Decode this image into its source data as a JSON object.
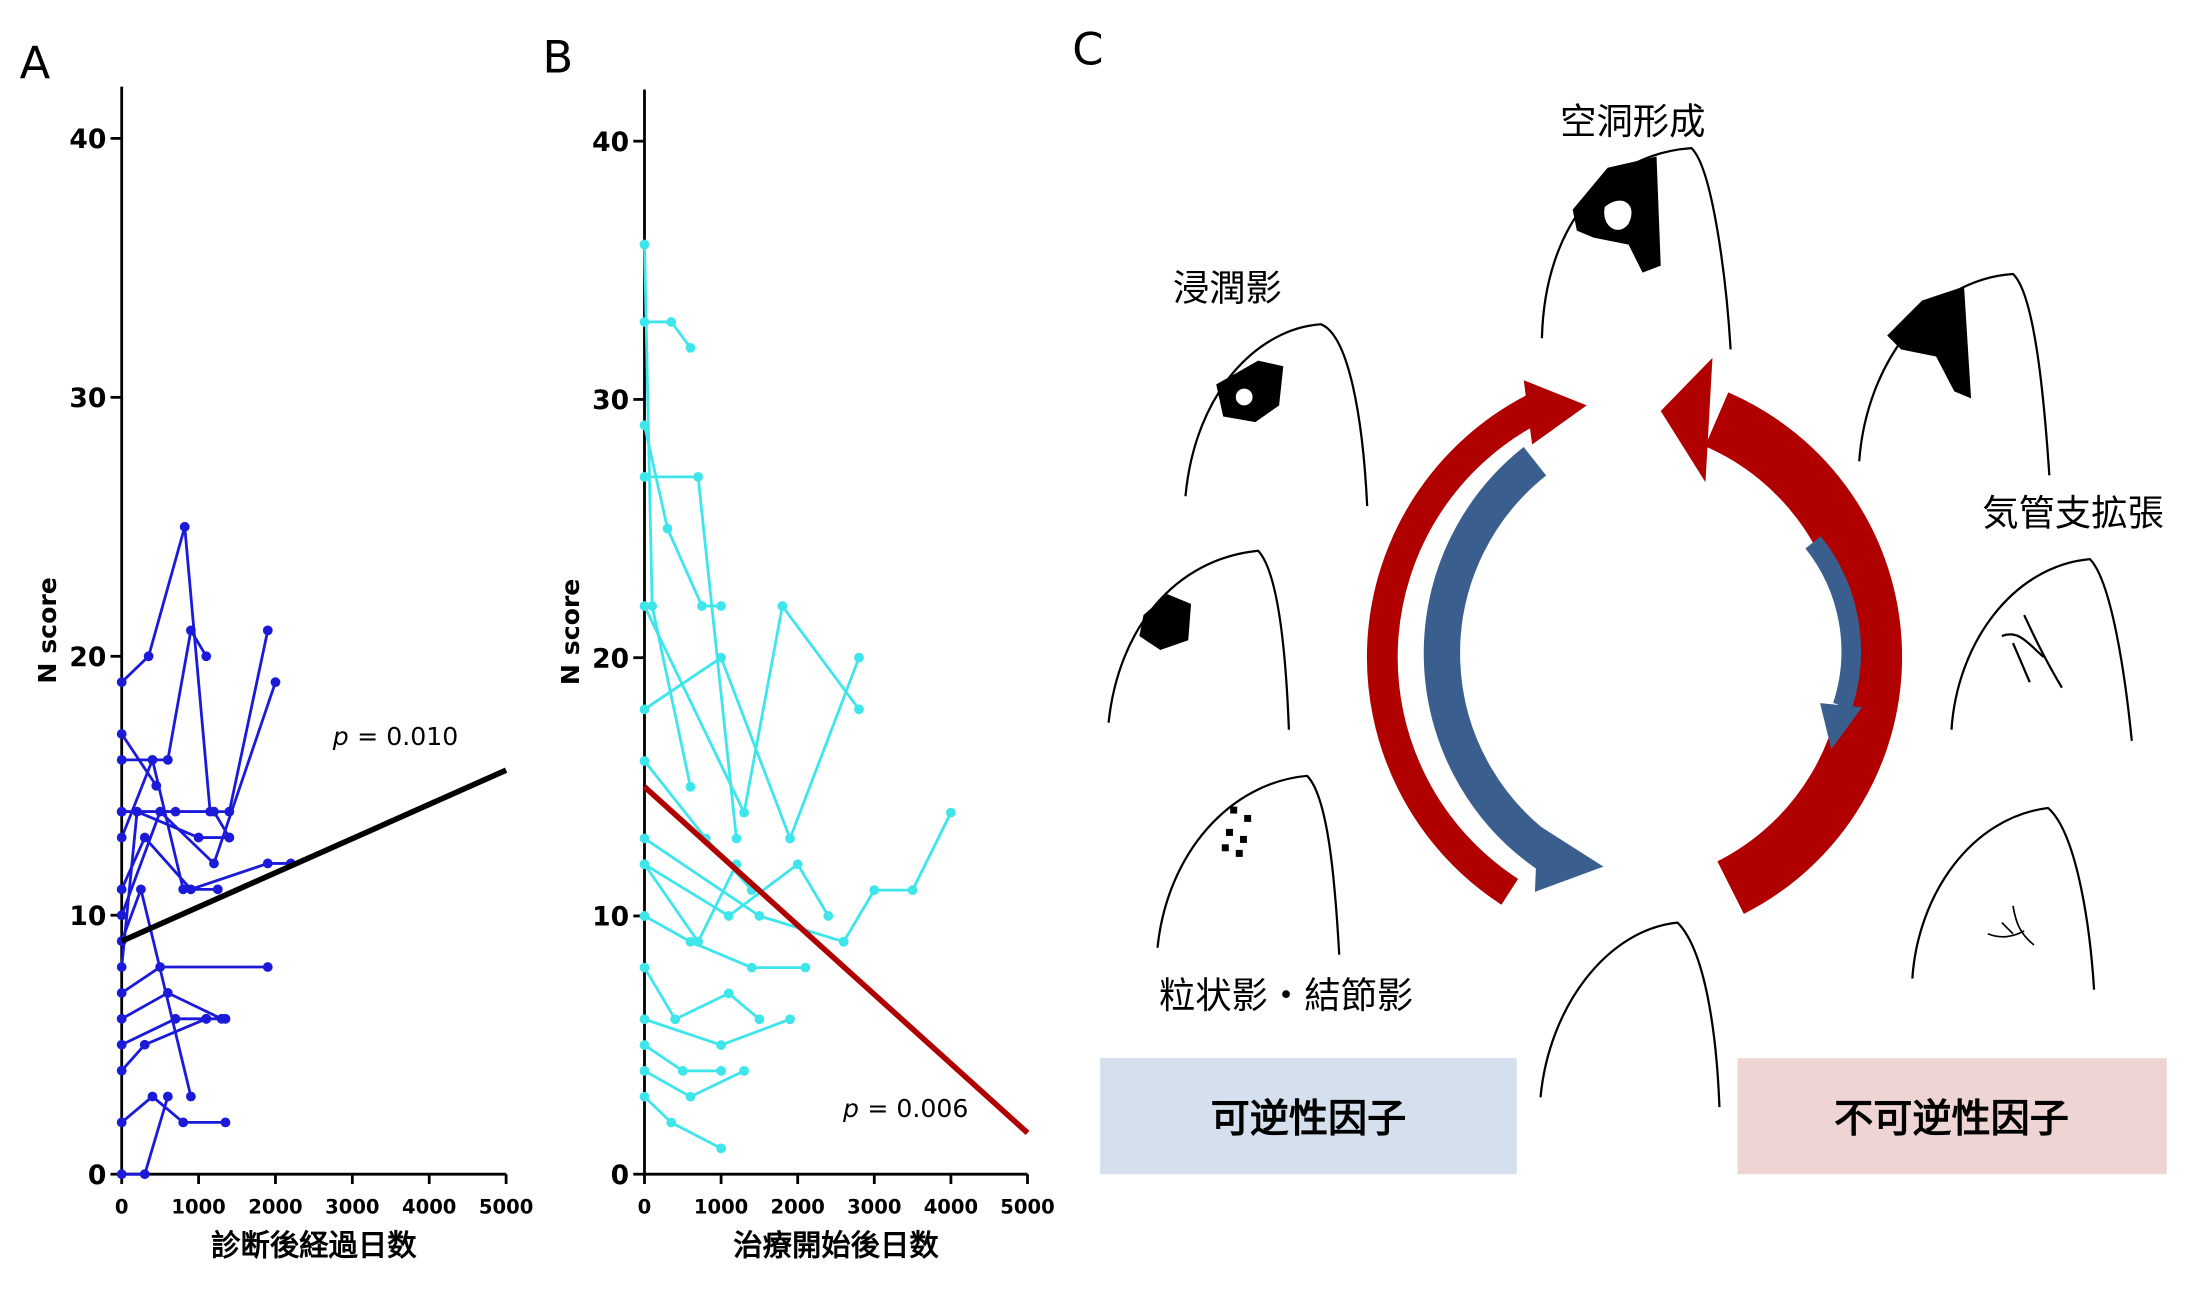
{
  "chart_data": [
    {
      "type": "line",
      "label": "A",
      "ylabel": "N score",
      "xlabel": "診断後経過日数",
      "annotation": {
        "symbol": "p",
        "text": "= 0.010"
      },
      "xlim": [
        0,
        5000
      ],
      "xticks": [
        0,
        1000,
        2000,
        3000,
        4000,
        5000
      ],
      "ylim": [
        0,
        42
      ],
      "yticks": [
        0,
        10,
        20,
        30,
        40
      ],
      "series": [
        {
          "color": "#1a1ad8",
          "x": [
            0,
            350,
            820,
            1150
          ],
          "values": [
            19,
            20,
            25,
            14
          ]
        },
        {
          "color": "#1a1ad8",
          "x": [
            0,
            600,
            900,
            1100
          ],
          "values": [
            16,
            16,
            21,
            20
          ]
        },
        {
          "color": "#1a1ad8",
          "x": [
            0,
            700,
            1400,
            1900
          ],
          "values": [
            14,
            14,
            14,
            21
          ]
        },
        {
          "color": "#1a1ad8",
          "x": [
            0,
            500,
            1200,
            2000
          ],
          "values": [
            10,
            14,
            12,
            19
          ]
        },
        {
          "color": "#1a1ad8",
          "x": [
            0,
            300,
            900,
            1900,
            2200
          ],
          "values": [
            11,
            13,
            11,
            12,
            12
          ]
        },
        {
          "color": "#1a1ad8",
          "x": [
            0,
            400,
            800,
            1250
          ],
          "values": [
            13,
            16,
            11,
            11
          ]
        },
        {
          "color": "#1a1ad8",
          "x": [
            0,
            200,
            1000,
            1400
          ],
          "values": [
            8,
            14,
            13,
            13
          ]
        },
        {
          "color": "#1a1ad8",
          "x": [
            0,
            500,
            1900
          ],
          "values": [
            7,
            8,
            8
          ]
        },
        {
          "color": "#1a1ad8",
          "x": [
            0,
            600,
            1300
          ],
          "values": [
            6,
            7,
            6
          ]
        },
        {
          "color": "#1a1ad8",
          "x": [
            0,
            300,
            1100,
            1350
          ],
          "values": [
            4,
            5,
            6,
            6
          ]
        },
        {
          "color": "#1a1ad8",
          "x": [
            0,
            400,
            800,
            1350
          ],
          "values": [
            2,
            3,
            2,
            2
          ]
        },
        {
          "color": "#1a1ad8",
          "x": [
            0,
            700,
            1100
          ],
          "values": [
            5,
            6,
            6
          ]
        },
        {
          "color": "#1a1ad8",
          "x": [
            0,
            300,
            600
          ],
          "values": [
            0,
            0,
            3
          ]
        },
        {
          "color": "#1a1ad8",
          "x": [
            0,
            450
          ],
          "values": [
            17,
            15
          ]
        },
        {
          "color": "#1a1ad8",
          "x": [
            0,
            1200,
            1400
          ],
          "values": [
            14,
            14,
            13
          ]
        },
        {
          "color": "#1a1ad8",
          "x": [
            0,
            250,
            900
          ],
          "values": [
            9,
            11,
            3
          ]
        }
      ],
      "trend": {
        "color": "#000000",
        "x": [
          0,
          5000
        ],
        "values": [
          9,
          15.6
        ]
      }
    },
    {
      "type": "line",
      "label": "B",
      "ylabel": "N score",
      "xlabel": "治療開始後日数",
      "annotation": {
        "symbol": "p",
        "text": "= 0.006"
      },
      "xlim": [
        0,
        5000
      ],
      "xticks": [
        0,
        1000,
        2000,
        3000,
        4000,
        5000
      ],
      "ylim": [
        0,
        42
      ],
      "yticks": [
        0,
        10,
        20,
        30,
        40
      ],
      "series": [
        {
          "color": "#3ee6ec",
          "x": [
            0,
            100,
            600
          ],
          "values": [
            36,
            22,
            15
          ]
        },
        {
          "color": "#3ee6ec",
          "x": [
            0,
            350,
            600
          ],
          "values": [
            33,
            33,
            32
          ]
        },
        {
          "color": "#3ee6ec",
          "x": [
            0,
            300,
            750,
            1000
          ],
          "values": [
            29,
            25,
            22,
            22
          ]
        },
        {
          "color": "#3ee6ec",
          "x": [
            0,
            700,
            1200
          ],
          "values": [
            27,
            27,
            13
          ]
        },
        {
          "color": "#3ee6ec",
          "x": [
            0,
            1300,
            1800,
            2800
          ],
          "values": [
            22,
            14,
            22,
            18
          ]
        },
        {
          "color": "#3ee6ec",
          "x": [
            0,
            1000,
            1900,
            2800
          ],
          "values": [
            18,
            20,
            13,
            20
          ]
        },
        {
          "color": "#3ee6ec",
          "x": [
            0,
            1500,
            2600,
            3000,
            3500,
            4000
          ],
          "values": [
            13,
            10,
            9,
            11,
            11,
            14
          ]
        },
        {
          "color": "#3ee6ec",
          "x": [
            0,
            1100,
            2000,
            2400
          ],
          "values": [
            12,
            10,
            12,
            10
          ]
        },
        {
          "color": "#3ee6ec",
          "x": [
            0,
            600,
            1400,
            2100
          ],
          "values": [
            10,
            9,
            8,
            8
          ]
        },
        {
          "color": "#3ee6ec",
          "x": [
            0,
            400,
            1100,
            1500
          ],
          "values": [
            8,
            6,
            7,
            6
          ]
        },
        {
          "color": "#3ee6ec",
          "x": [
            0,
            500,
            1000
          ],
          "values": [
            5,
            4,
            4
          ]
        },
        {
          "color": "#3ee6ec",
          "x": [
            0,
            350,
            1000
          ],
          "values": [
            3,
            2,
            1
          ]
        },
        {
          "color": "#3ee6ec",
          "x": [
            0,
            700,
            1200
          ],
          "values": [
            12,
            9,
            12
          ]
        },
        {
          "color": "#3ee6ec",
          "x": [
            0,
            800,
            1400
          ],
          "values": [
            16,
            13,
            11
          ]
        },
        {
          "color": "#3ee6ec",
          "x": [
            0,
            1000,
            1900
          ],
          "values": [
            6,
            5,
            6
          ]
        },
        {
          "color": "#3ee6ec",
          "x": [
            0,
            600,
            1300
          ],
          "values": [
            4,
            3,
            4
          ]
        }
      ],
      "trend": {
        "color": "#b00000",
        "x": [
          0,
          5000
        ],
        "values": [
          15,
          1.6
        ]
      }
    }
  ],
  "diagram": {
    "label": "C",
    "cavity": "空洞形成",
    "infiltrate": "浸潤影",
    "bronchiectasis": "気管支拡張",
    "nodules": "粒状影・結節影",
    "reversible": "可逆性因子",
    "irreversible": "不可逆性因子"
  }
}
